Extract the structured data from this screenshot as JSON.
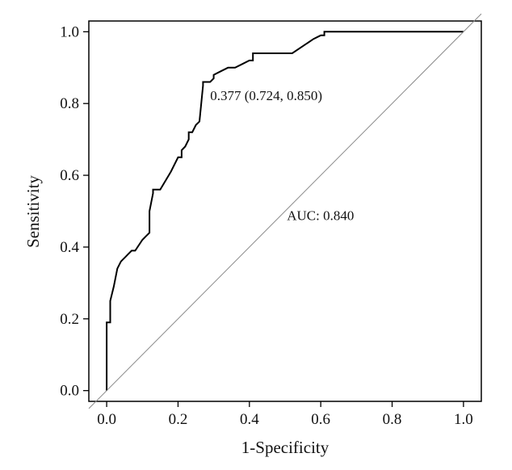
{
  "chart_data": {
    "type": "line",
    "title": "",
    "xlabel": "1-Specificity",
    "ylabel": "Sensitivity",
    "xlim": [
      -0.05,
      1.05
    ],
    "ylim": [
      -0.03,
      1.03
    ],
    "grid": false,
    "x_ticks": [
      0.0,
      0.2,
      0.4,
      0.6,
      0.8,
      1.0
    ],
    "y_ticks": [
      0.0,
      0.2,
      0.4,
      0.6,
      0.8,
      1.0
    ],
    "x_tick_labels": [
      "0.0",
      "0.2",
      "0.4",
      "0.6",
      "0.8",
      "1.0"
    ],
    "y_tick_labels": [
      "0.0",
      "0.2",
      "0.4",
      "0.6",
      "0.8",
      "1.0"
    ],
    "series": [
      {
        "style": "step",
        "color": "#000000",
        "x": [
          0.0,
          0.0,
          0.01,
          0.01,
          0.02,
          0.03,
          0.04,
          0.05,
          0.06,
          0.07,
          0.08,
          0.1,
          0.11,
          0.12,
          0.12,
          0.13,
          0.13,
          0.15,
          0.18,
          0.2,
          0.21,
          0.21,
          0.22,
          0.23,
          0.23,
          0.24,
          0.25,
          0.26,
          0.27,
          0.27,
          0.29,
          0.3,
          0.3,
          0.32,
          0.34,
          0.36,
          0.38,
          0.4,
          0.41,
          0.41,
          0.44,
          0.47,
          0.5,
          0.52,
          0.55,
          0.58,
          0.6,
          0.61,
          0.61,
          0.65,
          0.7,
          0.8,
          0.9,
          1.0
        ],
        "y": [
          0.0,
          0.19,
          0.19,
          0.25,
          0.29,
          0.34,
          0.36,
          0.37,
          0.38,
          0.39,
          0.39,
          0.42,
          0.43,
          0.44,
          0.5,
          0.55,
          0.56,
          0.56,
          0.61,
          0.65,
          0.65,
          0.67,
          0.68,
          0.7,
          0.72,
          0.72,
          0.74,
          0.75,
          0.85,
          0.86,
          0.86,
          0.87,
          0.88,
          0.89,
          0.9,
          0.9,
          0.91,
          0.92,
          0.92,
          0.94,
          0.94,
          0.94,
          0.94,
          0.94,
          0.96,
          0.98,
          0.99,
          0.99,
          1.0,
          1.0,
          1.0,
          1.0,
          1.0,
          1.0
        ]
      },
      {
        "style": "reference",
        "color": "#8a8a8a",
        "x": [
          -0.05,
          1.05
        ],
        "y": [
          -0.05,
          1.05
        ]
      }
    ],
    "annotations": [
      {
        "text": "0.377 (0.724, 0.850)",
        "x": 0.29,
        "y": 0.81
      },
      {
        "text": "AUC: 0.840",
        "x": 0.505,
        "y": 0.475
      }
    ]
  }
}
